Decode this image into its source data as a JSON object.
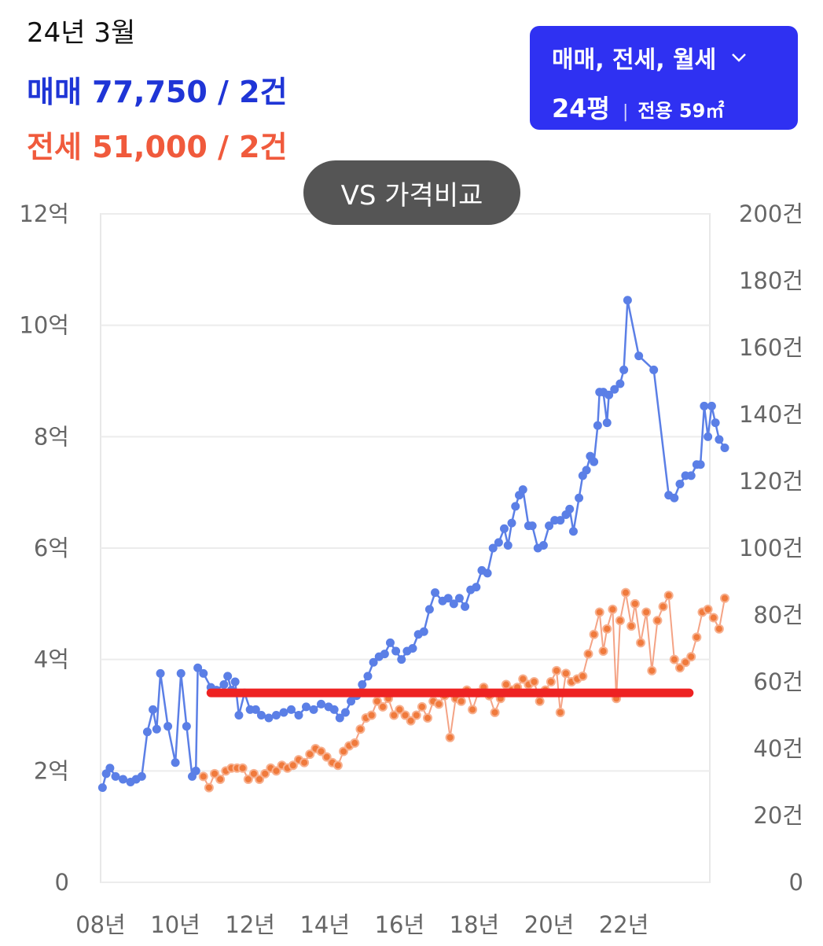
{
  "header": {
    "date": "24년 3월",
    "sale": {
      "label": "매매",
      "value": "77,750 / 2건"
    },
    "jeonse": {
      "label": "전세",
      "value": "51,000 / 2건"
    }
  },
  "filter": {
    "types": "매매, 전세, 월세",
    "pyeong": "24평",
    "area": "전용 59㎡"
  },
  "compare_button": "VS 가격비교",
  "colors": {
    "sale": "#5b7fe6",
    "sale_text": "#1f35d6",
    "jeonse": "#f0845c",
    "jeonse_text": "#f05a3c",
    "volume_sale": "#6677ee",
    "volume_jeonse": "#f4907a",
    "volume_rent": "#4caf3a",
    "marker_line": "#ee2222",
    "filter_bg": "#2f31f2"
  },
  "chart_data": {
    "type": "line",
    "title": "",
    "x_tick_labels": [
      "08년",
      "10년",
      "12년",
      "14년",
      "16년",
      "18년",
      "20년",
      "22년"
    ],
    "x_ticks": [
      2008,
      2010,
      2012,
      2014,
      2016,
      2018,
      2020,
      2022
    ],
    "xlim": [
      2008,
      2024.3
    ],
    "y_left_tick_labels": [
      "0",
      "2억",
      "4억",
      "6억",
      "8억",
      "10억",
      "12억"
    ],
    "y_left_ticks": [
      0,
      2,
      4,
      6,
      8,
      10,
      12
    ],
    "y_left_unit": "억",
    "ylim_left": [
      0,
      12
    ],
    "y_right_tick_labels": [
      "0",
      "20건",
      "40건",
      "60건",
      "80건",
      "100건",
      "120건",
      "140건",
      "160건",
      "180건",
      "200건"
    ],
    "y_right_ticks": [
      0,
      20,
      40,
      60,
      80,
      100,
      120,
      140,
      160,
      180,
      200
    ],
    "ylim_right": [
      0,
      200
    ],
    "grid": true,
    "series": [
      {
        "name": "매매",
        "axis": "left",
        "points": [
          [
            2008.05,
            1.7
          ],
          [
            2008.15,
            1.95
          ],
          [
            2008.25,
            2.05
          ],
          [
            2008.4,
            1.9
          ],
          [
            2008.6,
            1.85
          ],
          [
            2008.8,
            1.8
          ],
          [
            2008.95,
            1.85
          ],
          [
            2009.1,
            1.9
          ],
          [
            2009.25,
            2.7
          ],
          [
            2009.4,
            3.1
          ],
          [
            2009.5,
            2.75
          ],
          [
            2009.6,
            3.75
          ],
          [
            2009.8,
            2.8
          ],
          [
            2010.0,
            2.15
          ],
          [
            2010.15,
            3.75
          ],
          [
            2010.3,
            2.8
          ],
          [
            2010.45,
            1.9
          ],
          [
            2010.55,
            2.0
          ],
          [
            2010.6,
            3.85
          ],
          [
            2010.75,
            3.75
          ],
          [
            2010.95,
            3.5
          ],
          [
            2011.1,
            3.45
          ],
          [
            2011.3,
            3.55
          ],
          [
            2011.4,
            3.7
          ],
          [
            2011.5,
            3.45
          ],
          [
            2011.6,
            3.6
          ],
          [
            2011.7,
            3.0
          ],
          [
            2011.85,
            3.4
          ],
          [
            2012.0,
            3.1
          ],
          [
            2012.15,
            3.1
          ],
          [
            2012.3,
            3.0
          ],
          [
            2012.5,
            2.95
          ],
          [
            2012.7,
            3.0
          ],
          [
            2012.9,
            3.05
          ],
          [
            2013.1,
            3.1
          ],
          [
            2013.3,
            3.0
          ],
          [
            2013.5,
            3.15
          ],
          [
            2013.7,
            3.1
          ],
          [
            2013.9,
            3.2
          ],
          [
            2014.1,
            3.15
          ],
          [
            2014.25,
            3.1
          ],
          [
            2014.4,
            2.95
          ],
          [
            2014.55,
            3.05
          ],
          [
            2014.7,
            3.25
          ],
          [
            2014.85,
            3.35
          ],
          [
            2015.0,
            3.55
          ],
          [
            2015.15,
            3.7
          ],
          [
            2015.3,
            3.95
          ],
          [
            2015.45,
            4.05
          ],
          [
            2015.6,
            4.1
          ],
          [
            2015.75,
            4.3
          ],
          [
            2015.9,
            4.15
          ],
          [
            2016.05,
            4.0
          ],
          [
            2016.2,
            4.15
          ],
          [
            2016.35,
            4.2
          ],
          [
            2016.5,
            4.45
          ],
          [
            2016.65,
            4.5
          ],
          [
            2016.8,
            4.9
          ],
          [
            2016.95,
            5.2
          ],
          [
            2017.15,
            5.05
          ],
          [
            2017.3,
            5.1
          ],
          [
            2017.45,
            5.0
          ],
          [
            2017.6,
            5.1
          ],
          [
            2017.75,
            4.95
          ],
          [
            2017.9,
            5.25
          ],
          [
            2018.05,
            5.3
          ],
          [
            2018.2,
            5.6
          ],
          [
            2018.35,
            5.55
          ],
          [
            2018.5,
            6.0
          ],
          [
            2018.65,
            6.1
          ],
          [
            2018.8,
            6.35
          ],
          [
            2018.9,
            6.05
          ],
          [
            2019.0,
            6.45
          ],
          [
            2019.1,
            6.75
          ],
          [
            2019.2,
            6.95
          ],
          [
            2019.3,
            7.05
          ],
          [
            2019.45,
            6.4
          ],
          [
            2019.55,
            6.4
          ],
          [
            2019.7,
            6.0
          ],
          [
            2019.85,
            6.05
          ],
          [
            2020.0,
            6.4
          ],
          [
            2020.15,
            6.5
          ],
          [
            2020.3,
            6.5
          ],
          [
            2020.45,
            6.6
          ],
          [
            2020.55,
            6.7
          ],
          [
            2020.65,
            6.3
          ],
          [
            2020.8,
            6.9
          ],
          [
            2020.9,
            7.3
          ],
          [
            2021.0,
            7.4
          ],
          [
            2021.1,
            7.65
          ],
          [
            2021.2,
            7.55
          ],
          [
            2021.3,
            8.2
          ],
          [
            2021.35,
            8.8
          ],
          [
            2021.45,
            8.8
          ],
          [
            2021.55,
            8.25
          ],
          [
            2021.6,
            8.75
          ],
          [
            2021.75,
            8.85
          ],
          [
            2021.9,
            8.95
          ],
          [
            2022.0,
            9.2
          ],
          [
            2022.1,
            10.45
          ],
          [
            2022.4,
            9.45
          ],
          [
            2022.8,
            9.2
          ],
          [
            2023.2,
            6.95
          ],
          [
            2023.35,
            6.9
          ],
          [
            2023.5,
            7.15
          ],
          [
            2023.65,
            7.3
          ],
          [
            2023.8,
            7.3
          ],
          [
            2023.95,
            7.5
          ],
          [
            2024.05,
            7.5
          ],
          [
            2024.15,
            8.55
          ],
          [
            2024.25,
            8.0
          ],
          [
            2024.35,
            8.55
          ],
          [
            2024.45,
            8.25
          ],
          [
            2024.55,
            7.95
          ],
          [
            2024.7,
            7.8
          ]
        ]
      },
      {
        "name": "전세",
        "axis": "left",
        "points": [
          [
            2010.75,
            1.9
          ],
          [
            2010.9,
            1.7
          ],
          [
            2011.05,
            1.95
          ],
          [
            2011.2,
            1.85
          ],
          [
            2011.35,
            2.0
          ],
          [
            2011.5,
            2.05
          ],
          [
            2011.65,
            2.05
          ],
          [
            2011.8,
            2.05
          ],
          [
            2011.95,
            1.85
          ],
          [
            2012.1,
            1.95
          ],
          [
            2012.25,
            1.85
          ],
          [
            2012.4,
            1.95
          ],
          [
            2012.55,
            2.05
          ],
          [
            2012.7,
            2.0
          ],
          [
            2012.85,
            2.1
          ],
          [
            2013.0,
            2.05
          ],
          [
            2013.15,
            2.1
          ],
          [
            2013.3,
            2.2
          ],
          [
            2013.45,
            2.15
          ],
          [
            2013.6,
            2.3
          ],
          [
            2013.75,
            2.4
          ],
          [
            2013.9,
            2.35
          ],
          [
            2014.05,
            2.25
          ],
          [
            2014.2,
            2.15
          ],
          [
            2014.35,
            2.1
          ],
          [
            2014.5,
            2.35
          ],
          [
            2014.65,
            2.45
          ],
          [
            2014.8,
            2.5
          ],
          [
            2014.95,
            2.75
          ],
          [
            2015.1,
            2.95
          ],
          [
            2015.25,
            3.0
          ],
          [
            2015.4,
            3.25
          ],
          [
            2015.55,
            3.15
          ],
          [
            2015.7,
            3.3
          ],
          [
            2015.85,
            3.0
          ],
          [
            2016.0,
            3.1
          ],
          [
            2016.15,
            3.0
          ],
          [
            2016.3,
            2.9
          ],
          [
            2016.45,
            3.0
          ],
          [
            2016.6,
            3.15
          ],
          [
            2016.75,
            2.95
          ],
          [
            2016.9,
            3.25
          ],
          [
            2017.05,
            3.2
          ],
          [
            2017.2,
            3.35
          ],
          [
            2017.35,
            2.6
          ],
          [
            2017.5,
            3.3
          ],
          [
            2017.65,
            3.25
          ],
          [
            2017.8,
            3.45
          ],
          [
            2017.95,
            3.1
          ],
          [
            2018.1,
            3.4
          ],
          [
            2018.25,
            3.5
          ],
          [
            2018.4,
            3.35
          ],
          [
            2018.55,
            3.05
          ],
          [
            2018.7,
            3.3
          ],
          [
            2018.85,
            3.55
          ],
          [
            2019.0,
            3.45
          ],
          [
            2019.15,
            3.5
          ],
          [
            2019.3,
            3.65
          ],
          [
            2019.45,
            3.55
          ],
          [
            2019.6,
            3.6
          ],
          [
            2019.75,
            3.25
          ],
          [
            2019.9,
            3.45
          ],
          [
            2020.05,
            3.6
          ],
          [
            2020.2,
            3.8
          ],
          [
            2020.3,
            3.05
          ],
          [
            2020.45,
            3.75
          ],
          [
            2020.6,
            3.6
          ],
          [
            2020.75,
            3.65
          ],
          [
            2020.9,
            3.7
          ],
          [
            2021.05,
            4.1
          ],
          [
            2021.2,
            4.45
          ],
          [
            2021.35,
            4.85
          ],
          [
            2021.45,
            4.15
          ],
          [
            2021.55,
            4.55
          ],
          [
            2021.7,
            4.9
          ],
          [
            2021.8,
            3.3
          ],
          [
            2021.9,
            4.7
          ],
          [
            2022.05,
            5.2
          ],
          [
            2022.2,
            4.6
          ],
          [
            2022.3,
            5.0
          ],
          [
            2022.45,
            4.3
          ],
          [
            2022.6,
            4.85
          ],
          [
            2022.75,
            3.8
          ],
          [
            2022.9,
            4.7
          ],
          [
            2023.05,
            4.95
          ],
          [
            2023.2,
            5.15
          ],
          [
            2023.35,
            4.0
          ],
          [
            2023.5,
            3.85
          ],
          [
            2023.65,
            3.95
          ],
          [
            2023.8,
            4.05
          ],
          [
            2023.95,
            4.4
          ],
          [
            2024.1,
            4.85
          ],
          [
            2024.25,
            4.9
          ],
          [
            2024.4,
            4.75
          ],
          [
            2024.55,
            4.55
          ],
          [
            2024.7,
            5.1
          ]
        ]
      }
    ],
    "highlight_line": {
      "y": 3.4,
      "x_range": [
        2010.95,
        2023.75
      ]
    }
  }
}
